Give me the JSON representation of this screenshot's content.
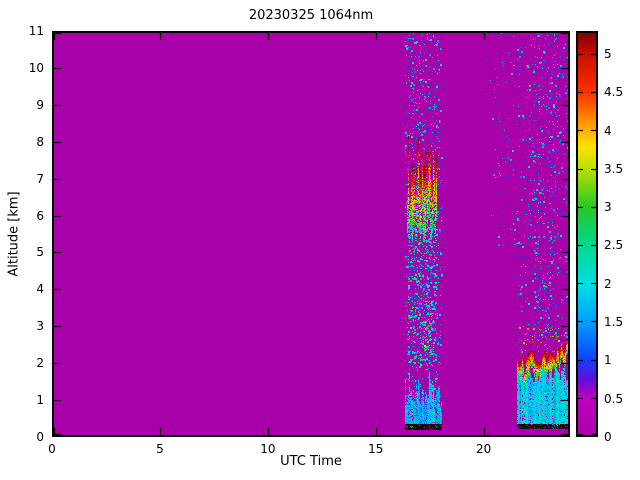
{
  "chart_data": {
    "type": "heatmap",
    "title": "20230325 1064nm",
    "xlabel": "UTC Time",
    "ylabel": "Altitude [km]",
    "xlim": [
      0,
      24
    ],
    "ylim": [
      0,
      11
    ],
    "xticks": [
      0,
      5,
      10,
      15,
      20
    ],
    "yticks": [
      0,
      1,
      2,
      3,
      4,
      5,
      6,
      7,
      8,
      9,
      10,
      11
    ],
    "background_value": 0,
    "colorbar": {
      "vmin": 0,
      "vmax": 5.3,
      "ticks": [
        0,
        0.5,
        1,
        1.5,
        2,
        2.5,
        3,
        3.5,
        4,
        4.5,
        5
      ],
      "stops": [
        {
          "v": 0.0,
          "c": "#A800A8"
        },
        {
          "v": 0.5,
          "c": "#C000C0"
        },
        {
          "v": 0.75,
          "c": "#6010D8"
        },
        {
          "v": 1.0,
          "c": "#1040FF"
        },
        {
          "v": 1.5,
          "c": "#00A0FF"
        },
        {
          "v": 2.0,
          "c": "#00E0E0"
        },
        {
          "v": 2.5,
          "c": "#00D890"
        },
        {
          "v": 3.0,
          "c": "#28C828"
        },
        {
          "v": 3.5,
          "c": "#B8E000"
        },
        {
          "v": 3.8,
          "c": "#FFE000"
        },
        {
          "v": 4.1,
          "c": "#FF9800"
        },
        {
          "v": 4.5,
          "c": "#FF3000"
        },
        {
          "v": 5.0,
          "c": "#C81000"
        },
        {
          "v": 5.3,
          "c": "#780000"
        }
      ]
    },
    "features": [
      {
        "kind": "speckle",
        "name": "band1-column-noise",
        "x": [
          16.35,
          18.05
        ],
        "y": [
          0.3,
          11
        ],
        "density": 0.09,
        "value": [
          0.4,
          2.6
        ]
      },
      {
        "kind": "speckle",
        "name": "band1-mid-noise",
        "x": [
          16.5,
          17.8
        ],
        "y": [
          2.0,
          5.8
        ],
        "density": 0.15,
        "value": [
          0.8,
          3.2
        ]
      },
      {
        "kind": "speckle",
        "name": "band1-strong-dots",
        "x": [
          17.2,
          17.7
        ],
        "y": [
          2.2,
          3.4
        ],
        "density": 0.08,
        "value": [
          2.0,
          4.6
        ]
      },
      {
        "kind": "band",
        "name": "band1-cirrus-cloud",
        "x": [
          16.45,
          17.78
        ],
        "yBottom": 5.7,
        "yTop": 7.45,
        "topJitter": 0.75,
        "bottomJitter": 0.55,
        "fill": 0.72,
        "topHeavy": true,
        "value": [
          2.4,
          5.3
        ]
      },
      {
        "kind": "band",
        "name": "band1-boundary-layer",
        "x": [
          16.38,
          17.98
        ],
        "yBottom": 0.32,
        "yTop": 1.25,
        "topJitter": 0.5,
        "bottomJitter": 0.05,
        "fill": 0.92,
        "topHeavy": false,
        "value": [
          1.0,
          2.4
        ]
      },
      {
        "kind": "dark",
        "name": "band1-surface-line",
        "x": [
          16.38,
          17.98
        ],
        "y": [
          0.22,
          0.34
        ]
      },
      {
        "kind": "speckle",
        "name": "gap-high-noise",
        "x": [
          20.3,
          21.45
        ],
        "y": [
          5.0,
          11
        ],
        "density": 0.02,
        "value": [
          0.4,
          2.2
        ]
      },
      {
        "kind": "speckle",
        "name": "band2-column-noise",
        "x": [
          21.5,
          24.0
        ],
        "y": [
          2.6,
          11
        ],
        "density": 0.035,
        "value": [
          0.4,
          2.4
        ]
      },
      {
        "kind": "speckle",
        "name": "band2-dense-noise",
        "x": [
          22.35,
          23.45
        ],
        "y": [
          2.6,
          11
        ],
        "density": 0.05,
        "value": [
          0.4,
          2.6
        ]
      },
      {
        "kind": "speckle",
        "name": "band2-ridge-dots",
        "x": [
          21.6,
          24.0
        ],
        "y": [
          2.3,
          3.0
        ],
        "density": 0.05,
        "value": [
          2.0,
          5.0
        ]
      },
      {
        "kind": "band",
        "name": "band2-boundary-layer",
        "x": [
          21.55,
          24.0
        ],
        "yBottom": 0.35,
        "yTop": 1.75,
        "topJitter": 0.25,
        "bottomJitter": 0.05,
        "fill": 0.95,
        "topHeavy": false,
        "value": [
          1.3,
          2.4
        ]
      },
      {
        "kind": "ridge",
        "name": "band2-cloud-top",
        "x": [
          21.55,
          24.0
        ],
        "yStart": 1.95,
        "yEnd": 2.55,
        "thickness": 0.45,
        "jitter": 0.3,
        "fill": 0.9,
        "value": [
          2.6,
          5.3
        ]
      },
      {
        "kind": "dark",
        "name": "band2-surface-line",
        "x": [
          21.55,
          24.0
        ],
        "y": [
          0.24,
          0.36
        ]
      }
    ]
  }
}
